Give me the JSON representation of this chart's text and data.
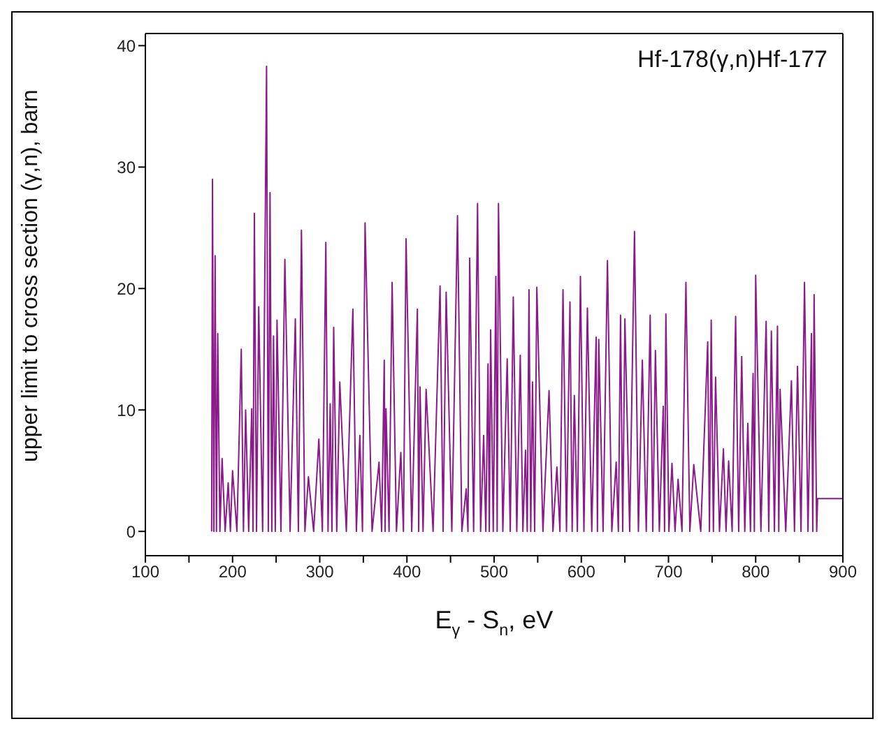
{
  "chart_data": {
    "type": "line",
    "title": "Hf-178(γ,n)Hf-177",
    "xlabel": "E$_{γ}$ - S$_{n}$, eV",
    "ylabel": "upper limit to cross section (γ,n), barn",
    "xlim": [
      100,
      900
    ],
    "xticks": [
      100,
      {
        "value": 150,
        "label": null
      },
      200,
      {
        "value": 250,
        "label": null
      },
      300,
      {
        "value": 350,
        "label": null
      },
      400,
      {
        "value": 450,
        "label": null
      },
      500,
      {
        "value": 550,
        "label": null
      },
      600,
      {
        "value": 650,
        "label": null
      },
      700,
      {
        "value": 750,
        "label": null
      },
      800,
      {
        "value": 850,
        "label": null
      },
      900
    ],
    "ylim": [
      -2,
      41
    ],
    "yticks": [
      0,
      10,
      20,
      30,
      40
    ],
    "grid": false,
    "legend": false,
    "marker": "none",
    "line_style": "solid",
    "series": [
      {
        "color": "#8b1a8b",
        "x": [
          176,
          177,
          178.5,
          180,
          181.5,
          183,
          185.5,
          188,
          191.5,
          195,
          197.5,
          200,
          205,
          210,
          212.5,
          215,
          218.5,
          222,
          223.5,
          225,
          227.5,
          230,
          234.5,
          239,
          241,
          243,
          245,
          247,
          249,
          251,
          255.5,
          260,
          266,
          272,
          275.5,
          279,
          283,
          287,
          293,
          299,
          303,
          307,
          309.5,
          312,
          314,
          316,
          319.5,
          323,
          330.5,
          338,
          342,
          346,
          349,
          352,
          360,
          368,
          371,
          374,
          375,
          376,
          379.5,
          383,
          388,
          393,
          396,
          399,
          405.5,
          412,
          413.5,
          415,
          418.5,
          422,
          430,
          438,
          441.5,
          445,
          451.5,
          458,
          463,
          468,
          470,
          472,
          476.5,
          481,
          484.5,
          488,
          490.5,
          493,
          494.5,
          496,
          499,
          502,
          503.5,
          505,
          510,
          515,
          518.5,
          522,
          526,
          530,
          533,
          536,
          538,
          540,
          542,
          544,
          546.5,
          549,
          556,
          563,
          567.5,
          572,
          575.5,
          579,
          583,
          587,
          589.5,
          592,
          595.5,
          599,
          603,
          607,
          612,
          617,
          618.5,
          620,
          625,
          630,
          635,
          640,
          642.5,
          645,
          647.5,
          650,
          655.5,
          661,
          665.5,
          670,
          674.5,
          679,
          682,
          685,
          689.5,
          694,
          695.5,
          697,
          700.5,
          704,
          707.5,
          711,
          715.5,
          720,
          724.5,
          729,
          737,
          745,
          747,
          749,
          751.5,
          754,
          758.5,
          763,
          766,
          769,
          773,
          777,
          780.5,
          784,
          787.5,
          791,
          794,
          797,
          798.5,
          800,
          806,
          812,
          815,
          818,
          821.5,
          825,
          826.5,
          828,
          834.5,
          841,
          844.5,
          848,
          852,
          856,
          860,
          864,
          865.5,
          867,
          870,
          871,
          900
        ],
        "values": [
          0,
          29,
          0,
          22.7,
          0,
          16.3,
          0,
          6,
          0,
          4,
          0,
          5,
          0,
          15,
          0,
          10,
          0,
          10.1,
          0,
          26.2,
          0,
          18.5,
          0,
          38.3,
          0,
          27.9,
          0,
          16.1,
          0,
          17.4,
          0,
          22.4,
          0,
          17.5,
          0,
          24.8,
          0,
          4.5,
          0,
          7.6,
          0,
          23.8,
          0,
          10.5,
          0,
          16.8,
          0,
          12.3,
          0,
          18.3,
          0,
          7.9,
          0,
          25.4,
          0,
          5.7,
          0,
          14.1,
          0,
          10.1,
          0,
          20.5,
          0,
          6.5,
          0,
          24.1,
          0,
          18.3,
          0,
          11.9,
          0,
          11.7,
          0,
          20.2,
          0,
          19.7,
          0,
          26,
          0,
          3.5,
          0,
          22.5,
          0,
          27,
          0,
          7.9,
          0,
          13.8,
          0,
          16.6,
          0,
          21,
          0,
          27,
          0,
          14.2,
          0,
          19.3,
          0,
          14.5,
          0,
          6.7,
          0,
          19.9,
          0,
          12.3,
          0,
          20.1,
          0,
          11.6,
          0,
          5.3,
          0,
          19.9,
          0,
          18.9,
          0,
          11.2,
          0,
          21,
          0,
          18.4,
          0,
          16,
          0,
          15.8,
          0,
          22.3,
          0,
          5.7,
          0,
          17.8,
          0,
          17.5,
          0,
          24.7,
          0,
          14.1,
          0,
          17.8,
          0,
          14.9,
          0,
          10.3,
          0,
          17.9,
          0,
          5.6,
          0,
          4.3,
          0,
          20.5,
          0,
          5.5,
          0,
          15.6,
          0,
          17.4,
          0,
          12.7,
          0,
          6.8,
          0,
          5.8,
          0,
          17.7,
          0,
          14.4,
          0,
          8.9,
          0,
          13,
          0,
          21.1,
          0,
          17.3,
          0,
          16.5,
          0,
          16.9,
          0,
          11.7,
          0,
          12.4,
          0,
          13.6,
          0,
          20.5,
          0,
          16.3,
          0,
          19.5,
          0,
          2.7,
          2.7
        ]
      }
    ]
  }
}
